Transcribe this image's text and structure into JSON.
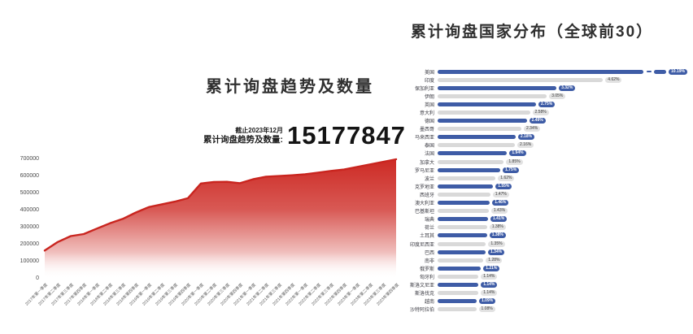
{
  "trend": {
    "title": "累计询盘趋势及数量",
    "annotation": {
      "as_of": "截止2023年12月",
      "label": "累计询盘趋势及数量:",
      "value": "15177847"
    }
  },
  "dist": {
    "title": "累计询盘国家分布（全球前30）"
  },
  "chart_data": [
    {
      "type": "area",
      "title": "累计询盘趋势及数量",
      "x": [
        "2017年第一季度",
        "2017年第二季度",
        "2017年第三季度",
        "2017年第四季度",
        "2018年第一季度",
        "2018年第二季度",
        "2018年第三季度",
        "2018年第四季度",
        "2019年第一季度",
        "2019年第二季度",
        "2019年第三季度",
        "2019年第四季度",
        "2020年第一季度",
        "2020年第二季度",
        "2020年第三季度",
        "2020年第四季度",
        "2021年第一季度",
        "2021年第二季度",
        "2021年第三季度",
        "2021年第四季度",
        "2022年第一季度",
        "2022年第二季度",
        "2022年第三季度",
        "2022年第四季度",
        "2023年第一季度",
        "2023年第二季度",
        "2023年第三季度",
        "2023年第四季度"
      ],
      "values": [
        165000,
        215000,
        250000,
        262000,
        294000,
        325000,
        351000,
        388000,
        420000,
        436000,
        452000,
        472000,
        558000,
        567000,
        568000,
        560000,
        583000,
        598000,
        602000,
        606000,
        612000,
        622000,
        632000,
        640000,
        655000,
        670000,
        685000,
        700000
      ],
      "ylim": [
        0,
        700000
      ],
      "yticks": [
        0,
        100000,
        200000,
        300000,
        400000,
        500000,
        600000,
        700000
      ],
      "grid": false,
      "legend": "none",
      "line_color": "#c9251f",
      "fill_color_top": "#cd2a24",
      "fill_color_bottom": "#ffffff"
    },
    {
      "type": "bar",
      "orientation": "horizontal",
      "title": "累计询盘国家分布（全球前30）",
      "categories": [
        "美国",
        "印度",
        "保加利亚",
        "伊朗",
        "英国",
        "意大利",
        "德国",
        "墨西哥",
        "马来西亚",
        "泰国",
        "法国",
        "加拿大",
        "罗马尼亚",
        "波兰",
        "克罗地亚",
        "西班牙",
        "澳大利亚",
        "巴基斯坦",
        "瑞典",
        "荷兰",
        "土耳其",
        "印度尼西亚",
        "巴西",
        "南非",
        "俄罗斯",
        "匈牙利",
        "斯洛文尼亚",
        "斯洛伐克",
        "越南",
        "沙特阿拉伯"
      ],
      "values": [
        10.19,
        4.62,
        3.32,
        3.05,
        2.75,
        2.58,
        2.49,
        2.34,
        2.18,
        2.16,
        1.94,
        1.85,
        1.75,
        1.62,
        1.55,
        1.47,
        1.46,
        1.43,
        1.41,
        1.38,
        1.38,
        1.35,
        1.34,
        1.28,
        1.21,
        1.14,
        1.14,
        1.14,
        1.09,
        1.08
      ],
      "value_labels": [
        "10.19%",
        "4.62%",
        "3.32%",
        "3.05%",
        "2.75%",
        "2.58%",
        "2.49%",
        "2.34%",
        "2.18%",
        "2.16%",
        "1.94%",
        "1.85%",
        "1.75%",
        "1.62%",
        "1.55%",
        "1.47%",
        "1.46%",
        "1.43%",
        "1.41%",
        "1.38%",
        "1.38%",
        "1.35%",
        "1.34%",
        "1.28%",
        "1.21%",
        "1.14%",
        "1.14%",
        "1.14%",
        "1.09%",
        "1.08%"
      ],
      "axis_break_category": "美国",
      "colors": {
        "bar_blue": "#3e5ca6",
        "bar_gray": "#d9d9d9",
        "badge_blue_bg": "#3e5ca6",
        "badge_gray_bg": "#e2e2e2"
      }
    }
  ]
}
